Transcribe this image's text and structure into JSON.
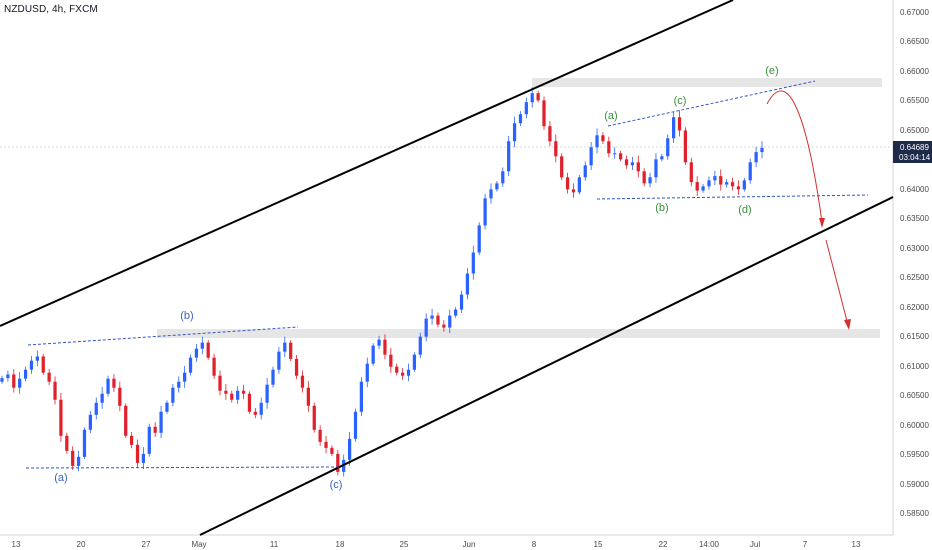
{
  "header": {
    "symbol_line": "NZDUSD, 4h, FXCM"
  },
  "colors": {
    "bull": "#2962ff",
    "bear": "#e0202a",
    "channel": "#000000",
    "wave_blue": "#2f56c6",
    "wave_label_blue": "#3b63c2",
    "wave_label_green": "#3a8f3a",
    "projection_red": "#d32f2f",
    "zone": "#e6e6e6",
    "price_tag": "#1e2a4a"
  },
  "price_axis": {
    "ticks": [
      "0.67000",
      "0.66500",
      "0.66000",
      "0.65500",
      "0.65000",
      "0.64500",
      "0.64000",
      "0.63500",
      "0.63000",
      "0.62500",
      "0.62000",
      "0.61500",
      "0.61000",
      "0.60500",
      "0.60000",
      "0.59500",
      "0.59000",
      "0.58500"
    ],
    "last_price": "0.64689",
    "countdown": "03:04:14"
  },
  "time_axis": {
    "ticks": [
      "13",
      "20",
      "27",
      "May",
      "11",
      "18",
      "25",
      "Jun",
      "8",
      "15",
      "22",
      "14:00",
      "Jul",
      "7",
      "13"
    ]
  },
  "annotations": {
    "wave_labels_lower": [
      "(a)",
      "(b)",
      "(c)"
    ],
    "wave_labels_upper": [
      "(a)",
      "(b)",
      "(c)",
      "(d)",
      "(e)"
    ]
  },
  "chart_data": {
    "type": "candlestick",
    "symbol": "NZDUSD",
    "timeframe": "4h",
    "source": "FXCM",
    "ylim": [
      0.5825,
      0.6715
    ],
    "y_ticks": [
      0.67,
      0.665,
      0.66,
      0.655,
      0.65,
      0.645,
      0.64,
      0.635,
      0.63,
      0.625,
      0.62,
      0.615,
      0.61,
      0.605,
      0.6,
      0.595,
      0.59,
      0.585
    ],
    "last_price": 0.64689,
    "key_levels": {
      "resistance_zone": [
        0.6577,
        0.6585
      ],
      "support_zone": [
        0.6148,
        0.6157
      ],
      "upper_triangle_top_start": 0.6502,
      "upper_triangle_bottom": 0.6386,
      "lower_base": 0.592,
      "lower_top_start": 0.613
    },
    "closes": [
      0.6086,
      0.6092,
      0.607,
      0.6085,
      0.61,
      0.6115,
      0.6122,
      0.6095,
      0.608,
      0.605,
      0.599,
      0.5965,
      0.594,
      0.5955,
      0.6,
      0.6025,
      0.6045,
      0.606,
      0.6085,
      0.607,
      0.604,
      0.599,
      0.5975,
      0.5945,
      0.596,
      0.6005,
      0.5995,
      0.603,
      0.6045,
      0.607,
      0.608,
      0.6095,
      0.612,
      0.6135,
      0.6145,
      0.612,
      0.609,
      0.6065,
      0.606,
      0.605,
      0.6065,
      0.606,
      0.603,
      0.6025,
      0.6045,
      0.6075,
      0.61,
      0.613,
      0.6145,
      0.6118,
      0.609,
      0.607,
      0.604,
      0.6,
      0.598,
      0.597,
      0.596,
      0.593,
      0.595,
      0.5985,
      0.603,
      0.608,
      0.611,
      0.614,
      0.615,
      0.6125,
      0.6105,
      0.6095,
      0.609,
      0.61,
      0.6125,
      0.6155,
      0.6185,
      0.619,
      0.6175,
      0.617,
      0.619,
      0.62,
      0.6225,
      0.626,
      0.6295,
      0.634,
      0.6385,
      0.64,
      0.641,
      0.643,
      0.648,
      0.651,
      0.6525,
      0.6545,
      0.656,
      0.6548,
      0.6505,
      0.648,
      0.6455,
      0.642,
      0.64,
      0.6395,
      0.642,
      0.644,
      0.647,
      0.649,
      0.648,
      0.646,
      0.646,
      0.645,
      0.644,
      0.6445,
      0.643,
      0.641,
      0.642,
      0.645,
      0.6455,
      0.6485,
      0.652,
      0.6498,
      0.6445,
      0.6412,
      0.6398,
      0.6405,
      0.6415,
      0.6422,
      0.6408,
      0.6412,
      0.6405,
      0.64,
      0.6415,
      0.6445,
      0.6462,
      0.6469
    ]
  }
}
